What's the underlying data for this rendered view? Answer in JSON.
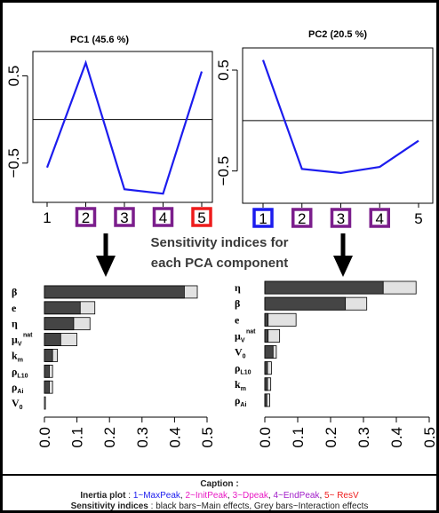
{
  "charts": {
    "pc1": {
      "type": "line",
      "title": "PC1 (45.6 %)",
      "x": [
        1,
        2,
        3,
        4,
        5
      ],
      "x_tick_labels": [
        "1",
        "2",
        "3",
        "4",
        "5"
      ],
      "values": [
        -0.55,
        0.65,
        -0.8,
        -0.85,
        0.55
      ],
      "y_ticks": [
        {
          "v": 0.5,
          "label": "0.5"
        },
        {
          "v": -0.5,
          "label": "−0.5"
        }
      ],
      "ylim": [
        -0.95,
        0.78
      ],
      "reference_line": 0,
      "line_color": "#1c1cee",
      "tick_boxes": [
        {
          "index": 2,
          "color": "#7b1e8c"
        },
        {
          "index": 3,
          "color": "#7b1e8c"
        },
        {
          "index": 4,
          "color": "#7b1e8c"
        },
        {
          "index": 5,
          "color": "#ee1c1c"
        }
      ]
    },
    "pc2": {
      "type": "line",
      "title": "PC2 (20.5 %)",
      "x": [
        1,
        2,
        3,
        4,
        5
      ],
      "x_tick_labels": [
        "1",
        "2",
        "3",
        "4",
        "5"
      ],
      "values": [
        0.6,
        -0.48,
        -0.52,
        -0.46,
        -0.2
      ],
      "y_ticks": [
        {
          "v": 0.5,
          "label": "0.5"
        },
        {
          "v": -0.5,
          "label": "−0.5"
        }
      ],
      "ylim": [
        -0.82,
        0.72
      ],
      "reference_line": 0,
      "line_color": "#1c1cee",
      "tick_boxes": [
        {
          "index": 1,
          "color": "#1c1cee"
        },
        {
          "index": 2,
          "color": "#7b1e8c"
        },
        {
          "index": 3,
          "color": "#7b1e8c"
        },
        {
          "index": 4,
          "color": "#7b1e8c"
        }
      ]
    },
    "si_left": {
      "type": "bar",
      "orientation": "horizontal",
      "xlim": [
        0,
        0.5
      ],
      "x_ticks": [
        {
          "v": 0,
          "label": "0.0"
        },
        {
          "v": 0.1,
          "label": "0.1"
        },
        {
          "v": 0.2,
          "label": "0.2"
        },
        {
          "v": 0.3,
          "label": "0.3"
        },
        {
          "v": 0.4,
          "label": "0.4"
        },
        {
          "v": 0.5,
          "label": "0.5"
        }
      ],
      "bars": [
        {
          "label": "β",
          "sub": "",
          "sup": "",
          "main": 0.43,
          "total": 0.47
        },
        {
          "label": "e",
          "sub": "",
          "sup": "",
          "main": 0.11,
          "total": 0.155
        },
        {
          "label": "η",
          "sub": "",
          "sup": "",
          "main": 0.09,
          "total": 0.14
        },
        {
          "label": "μ",
          "sub": "V",
          "sup": "nat",
          "main": 0.05,
          "total": 0.1
        },
        {
          "label": "k",
          "sub": "m",
          "sup": "",
          "main": 0.025,
          "total": 0.04
        },
        {
          "label": "ρ",
          "sub": "L10",
          "sup": "",
          "main": 0.015,
          "total": 0.025
        },
        {
          "label": "ρ",
          "sub": "Ai",
          "sup": "",
          "main": 0.015,
          "total": 0.025
        },
        {
          "label": "V",
          "sub": "0",
          "sup": "",
          "main": 0.0,
          "total": 0.003
        }
      ],
      "main_color": "#454545",
      "total_color": "#e2e2e2"
    },
    "si_right": {
      "type": "bar",
      "orientation": "horizontal",
      "xlim": [
        0,
        0.5
      ],
      "x_ticks": [
        {
          "v": 0,
          "label": "0.0"
        },
        {
          "v": 0.1,
          "label": "0.1"
        },
        {
          "v": 0.2,
          "label": "0.2"
        },
        {
          "v": 0.3,
          "label": "0.3"
        },
        {
          "v": 0.4,
          "label": "0.4"
        },
        {
          "v": 0.5,
          "label": "0.5"
        }
      ],
      "bars": [
        {
          "label": "η",
          "sub": "",
          "sup": "",
          "main": 0.36,
          "total": 0.46
        },
        {
          "label": "β",
          "sub": "",
          "sup": "",
          "main": 0.245,
          "total": 0.31
        },
        {
          "label": "e",
          "sub": "",
          "sup": "",
          "main": 0.01,
          "total": 0.095
        },
        {
          "label": "μ",
          "sub": "V",
          "sup": "nat",
          "main": 0.01,
          "total": 0.045
        },
        {
          "label": "V",
          "sub": "0",
          "sup": "",
          "main": 0.025,
          "total": 0.035
        },
        {
          "label": "ρ",
          "sub": "L10",
          "sup": "",
          "main": 0.008,
          "total": 0.02
        },
        {
          "label": "k",
          "sub": "m",
          "sup": "",
          "main": 0.008,
          "total": 0.018
        },
        {
          "label": "ρ",
          "sub": "Ai",
          "sup": "",
          "main": 0.006,
          "total": 0.015
        }
      ],
      "main_color": "#454545",
      "total_color": "#e2e2e2"
    }
  },
  "middle_text": {
    "line1": "Sensitivity indices for",
    "line2": "each PCA component"
  },
  "caption": {
    "title": "Caption :",
    "inertia_label": "Inertia plot",
    "inertia_sep": " : ",
    "items": [
      {
        "text": "1~MaxPeak",
        "color": "#1c1cee"
      },
      {
        "text": ", ",
        "color": "#222222"
      },
      {
        "text": "2~InitPeak",
        "color": "#e81cc4"
      },
      {
        "text": ", ",
        "color": "#222222"
      },
      {
        "text": "3~Dpeak",
        "color": "#e81cc4"
      },
      {
        "text": ", ",
        "color": "#222222"
      },
      {
        "text": "4~EndPeak",
        "color": "#a01cc8"
      },
      {
        "text": ", ",
        "color": "#222222"
      },
      {
        "text": "5~ ResV",
        "color": "#ee1c1c"
      }
    ],
    "sens_label": "Sensitivity indices",
    "sens_text": " : black bars~Main effects, Grey bars~Interaction effects"
  }
}
